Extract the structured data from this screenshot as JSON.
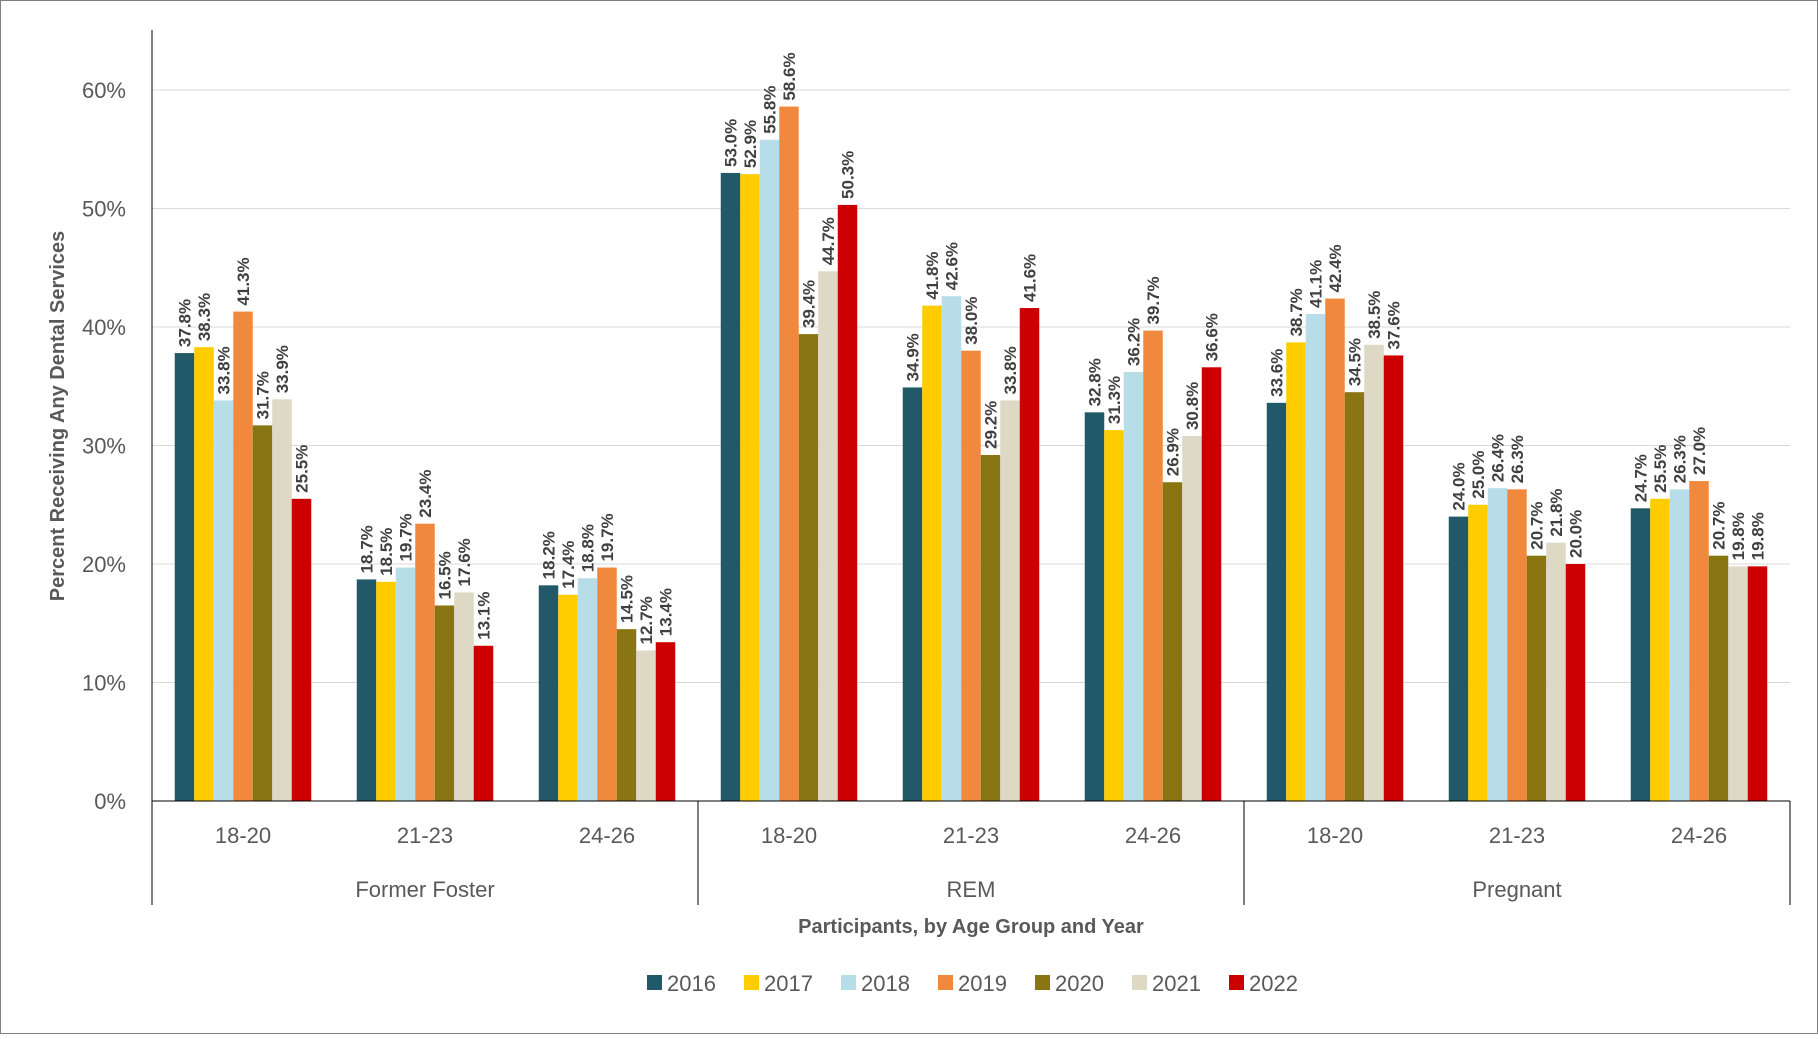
{
  "chart_data": {
    "type": "bar",
    "title": "",
    "ylabel": "Percent Receiving Any Dental Services",
    "xlabel": "Participants, by Age Group and Year",
    "ylim": [
      0,
      65
    ],
    "yticks": [
      0,
      10,
      20,
      30,
      40,
      50,
      60
    ],
    "ytick_labels": [
      "0%",
      "10%",
      "20%",
      "30%",
      "40%",
      "50%",
      "60%"
    ],
    "grid": true,
    "legend_position": "bottom",
    "groups": [
      {
        "name": "Former Foster",
        "categories": [
          "18-20",
          "21-23",
          "24-26"
        ]
      },
      {
        "name": "REM",
        "categories": [
          "18-20",
          "21-23",
          "24-26"
        ]
      },
      {
        "name": "Pregnant",
        "categories": [
          "18-20",
          "21-23",
          "24-26"
        ]
      }
    ],
    "series": [
      {
        "name": "2016",
        "color": "#215968",
        "values": [
          37.8,
          18.7,
          18.2,
          53.0,
          34.9,
          32.8,
          33.6,
          24.0,
          24.7
        ]
      },
      {
        "name": "2017",
        "color": "#FFCC00",
        "values": [
          38.3,
          18.5,
          17.4,
          52.9,
          41.8,
          31.3,
          38.7,
          25.0,
          25.5
        ]
      },
      {
        "name": "2018",
        "color": "#B7DEE8",
        "values": [
          33.8,
          19.7,
          18.8,
          55.8,
          42.6,
          36.2,
          41.1,
          26.4,
          26.3
        ]
      },
      {
        "name": "2019",
        "color": "#F0883E",
        "values": [
          41.3,
          23.4,
          19.7,
          58.6,
          38.0,
          39.7,
          42.4,
          26.3,
          27.0
        ]
      },
      {
        "name": "2020",
        "color": "#8A7513",
        "values": [
          31.7,
          16.5,
          14.5,
          39.4,
          29.2,
          26.9,
          34.5,
          20.7,
          20.7
        ]
      },
      {
        "name": "2021",
        "color": "#DDD9C4",
        "values": [
          33.9,
          17.6,
          12.7,
          44.7,
          33.8,
          30.8,
          38.5,
          21.8,
          19.8
        ]
      },
      {
        "name": "2022",
        "color": "#CC0000",
        "values": [
          25.5,
          13.1,
          13.4,
          50.3,
          41.6,
          36.6,
          37.6,
          20.0,
          19.8
        ]
      }
    ]
  }
}
